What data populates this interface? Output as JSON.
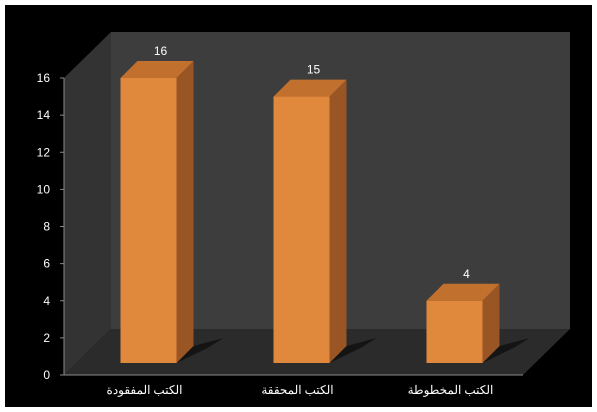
{
  "chart_data": {
    "type": "bar",
    "categories": [
      "الكتب المفقودة",
      "الكتب المحققة",
      "الكتب المخطوطة"
    ],
    "values": [
      16,
      15,
      4
    ],
    "data_labels": [
      "16",
      "15",
      "4"
    ],
    "title": "",
    "xlabel": "",
    "ylabel": "",
    "ylim": [
      0,
      16
    ],
    "yticks": [
      0,
      2,
      4,
      6,
      8,
      10,
      12,
      14,
      16
    ],
    "grid": false,
    "legend": "none",
    "three_d": true,
    "colors": {
      "background": "#000000",
      "back_wall": "#3d3d3d",
      "floor": "#2b2b2b",
      "left_wall": "#333333",
      "bar_front": "#e0883c",
      "bar_side": "#9a5524",
      "bar_top": "#c2702e",
      "bar_shadow": "#141414",
      "text": "#ffffff"
    }
  }
}
